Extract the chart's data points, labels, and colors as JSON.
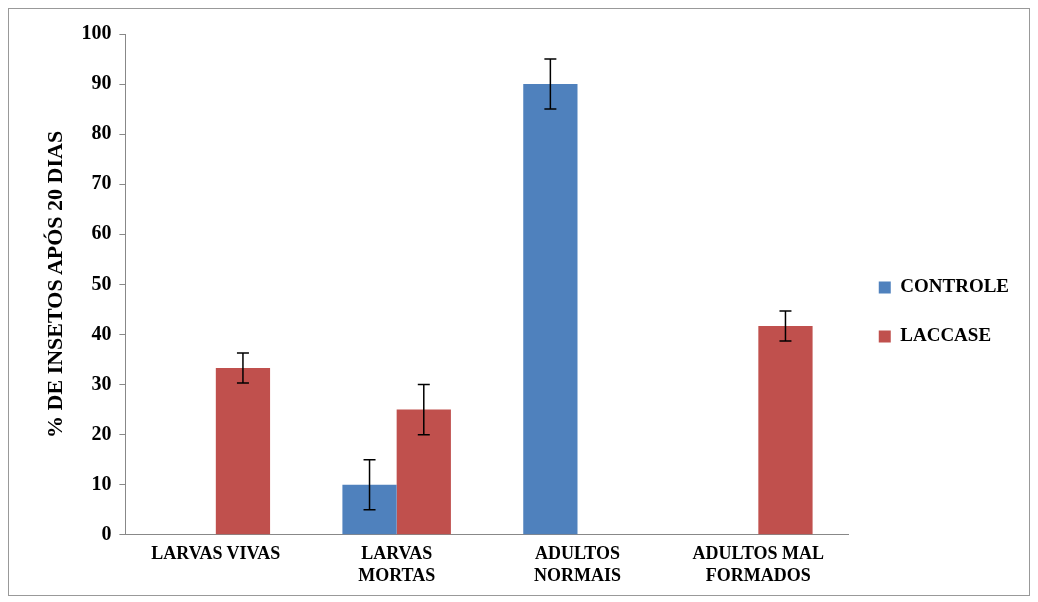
{
  "chart_data": {
    "type": "bar",
    "ylabel": "% DE INSETOS APÓS 20 DIAS",
    "categories": [
      "LARVAS VIVAS",
      "LARVAS\nMORTAS",
      "ADULTOS\nNORMAIS",
      "ADULTOS MAL\nFORMADOS"
    ],
    "series": [
      {
        "name": "CONTROLE",
        "color": "#4f81bd",
        "values": [
          0,
          10,
          90,
          0
        ],
        "errors": [
          null,
          5,
          5,
          null
        ]
      },
      {
        "name": "LACCASE",
        "color": "#c0504d",
        "values": [
          33.3,
          25,
          0,
          41.7
        ],
        "errors": [
          3,
          5,
          null,
          3
        ]
      }
    ],
    "ylim": [
      0,
      100
    ],
    "yticks": [
      0,
      10,
      20,
      30,
      40,
      50,
      60,
      70,
      80,
      90,
      100
    ],
    "grid": false,
    "legend": "right"
  }
}
